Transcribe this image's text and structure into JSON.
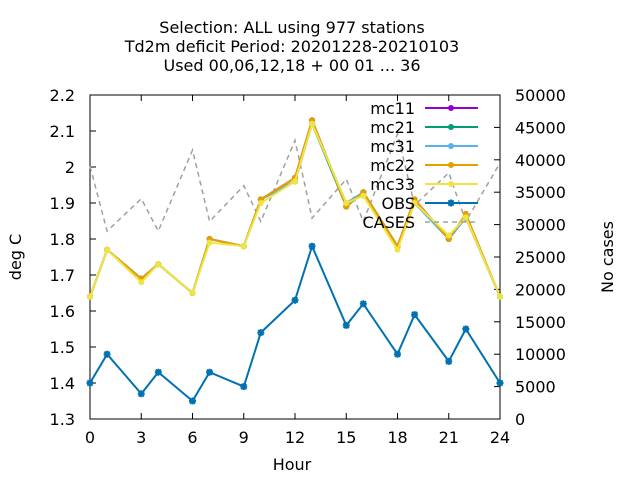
{
  "chart_data": {
    "type": "line",
    "title": [
      "Selection: ALL using   977 stations",
      "Td2m deficit   Period: 20201228-20210103",
      "Used  00,06,12,18 + 00 01 ... 36"
    ],
    "xlabel": "Hour",
    "ylabel": "deg C",
    "y2label": "No cases",
    "xlim": [
      0,
      24
    ],
    "ylim": [
      1.3,
      2.2
    ],
    "y2lim": [
      0,
      50000
    ],
    "xticks": [
      "0",
      "3",
      "6",
      "9",
      "12",
      "15",
      "18",
      "21",
      "24"
    ],
    "yticks": [
      "1.3",
      "1.4",
      "1.5",
      "1.6",
      "1.7",
      "1.8",
      "1.9",
      "2",
      "2.1",
      "2.2"
    ],
    "y2ticks": [
      "0",
      "5000",
      "10000",
      "15000",
      "20000",
      "25000",
      "30000",
      "35000",
      "40000",
      "45000",
      "50000"
    ],
    "legend_position": "top-right",
    "grid": false,
    "x": [
      0,
      1,
      3,
      4,
      6,
      7,
      9,
      10,
      12,
      13,
      15,
      16,
      18,
      19,
      21,
      22,
      24
    ],
    "series": [
      {
        "name": "mc11",
        "color": "#9400d3",
        "marker": "filled-circle",
        "axis": "y",
        "values": [
          1.64,
          1.77,
          1.69,
          1.73,
          1.65,
          1.8,
          1.78,
          1.91,
          1.97,
          2.13,
          1.89,
          1.93,
          1.78,
          1.91,
          1.8,
          1.86,
          1.64
        ]
      },
      {
        "name": "mc21",
        "color": "#009e73",
        "marker": "filled-circle",
        "axis": "y",
        "values": [
          1.64,
          1.77,
          1.69,
          1.73,
          1.65,
          1.8,
          1.78,
          1.91,
          1.96,
          2.12,
          1.89,
          1.93,
          1.78,
          1.9,
          1.8,
          1.86,
          1.64
        ]
      },
      {
        "name": "mc31",
        "color": "#56b4e9",
        "marker": "filled-circle",
        "axis": "y",
        "values": [
          1.64,
          1.77,
          1.69,
          1.73,
          1.65,
          1.8,
          1.78,
          1.91,
          1.96,
          2.12,
          1.9,
          1.93,
          1.78,
          1.9,
          1.8,
          1.86,
          1.64
        ]
      },
      {
        "name": "mc22",
        "color": "#e69f00",
        "marker": "filled-circle",
        "axis": "y",
        "values": [
          1.64,
          1.77,
          1.69,
          1.73,
          1.65,
          1.8,
          1.78,
          1.91,
          1.97,
          2.13,
          1.89,
          1.93,
          1.78,
          1.91,
          1.8,
          1.87,
          1.64
        ]
      },
      {
        "name": "mc33",
        "color": "#f0e442",
        "marker": "filled-circle",
        "axis": "y",
        "values": [
          1.64,
          1.77,
          1.68,
          1.73,
          1.65,
          1.79,
          1.78,
          1.9,
          1.96,
          2.12,
          1.9,
          1.92,
          1.77,
          1.9,
          1.81,
          1.86,
          1.64
        ]
      },
      {
        "name": "OBS",
        "color": "#0072b2",
        "marker": "filled-star",
        "axis": "y",
        "values": [
          1.4,
          1.48,
          1.37,
          1.43,
          1.35,
          1.43,
          1.39,
          1.54,
          1.63,
          1.78,
          1.56,
          1.62,
          1.48,
          1.59,
          1.46,
          1.55,
          1.4
        ]
      },
      {
        "name": "CASES",
        "color": "#a0a0a0",
        "dash": "dashed",
        "axis": "y2",
        "values": [
          39000,
          29000,
          34000,
          29000,
          41500,
          30500,
          36000,
          30500,
          43000,
          31000,
          37000,
          30500,
          44000,
          33000,
          38000,
          30500,
          39500
        ]
      }
    ]
  }
}
